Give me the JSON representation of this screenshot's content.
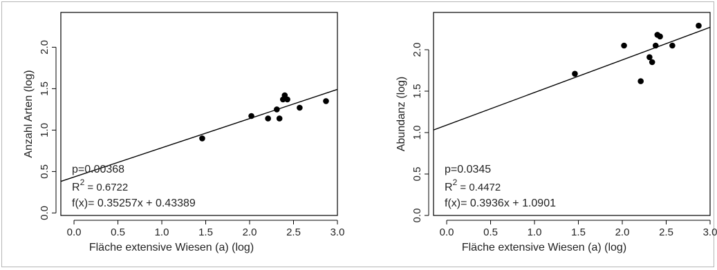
{
  "chart_data": [
    {
      "type": "scatter",
      "xlabel": "Fläche extensive Wiesen (a) (log)",
      "ylabel": "Anzahl Arten (log)",
      "xlim": [
        -0.15,
        3.0
      ],
      "ylim": [
        -0.03,
        2.42
      ],
      "xticks": [
        "0.0",
        "0.5",
        "1.0",
        "1.5",
        "2.0",
        "2.5",
        "3.0"
      ],
      "yticks": [
        "0.0",
        "0.5",
        "1.0",
        "1.5",
        "2.0"
      ],
      "grid": false,
      "points": [
        {
          "x": 1.46,
          "y": 0.9
        },
        {
          "x": 2.02,
          "y": 1.17
        },
        {
          "x": 2.21,
          "y": 1.14
        },
        {
          "x": 2.31,
          "y": 1.25
        },
        {
          "x": 2.34,
          "y": 1.14
        },
        {
          "x": 2.38,
          "y": 1.37
        },
        {
          "x": 2.4,
          "y": 1.42
        },
        {
          "x": 2.43,
          "y": 1.37
        },
        {
          "x": 2.57,
          "y": 1.27
        },
        {
          "x": 2.87,
          "y": 1.35
        }
      ],
      "fit": {
        "slope": 0.35257,
        "intercept": 0.43389
      },
      "annotations": [
        "p=0.00368",
        "R",
        "2",
        " = 0.6722",
        "f(x)= 0.35257x + 0.43389"
      ]
    },
    {
      "type": "scatter",
      "xlabel": "Fläche extensive Wiesen (a) (log)",
      "ylabel": "Abundanz (log)",
      "xlim": [
        -0.15,
        3.0
      ],
      "ylim": [
        0.0,
        2.45
      ],
      "xticks": [
        "0.0",
        "0.5",
        "1.0",
        "1.5",
        "2.0",
        "2.5",
        "3.0"
      ],
      "yticks": [
        "0.0",
        "0.5",
        "1.0",
        "1.5",
        "2.0"
      ],
      "grid": false,
      "points": [
        {
          "x": 1.46,
          "y": 1.71
        },
        {
          "x": 2.02,
          "y": 2.05
        },
        {
          "x": 2.21,
          "y": 1.62
        },
        {
          "x": 2.31,
          "y": 1.91
        },
        {
          "x": 2.34,
          "y": 1.85
        },
        {
          "x": 2.38,
          "y": 2.05
        },
        {
          "x": 2.4,
          "y": 2.18
        },
        {
          "x": 2.43,
          "y": 2.16
        },
        {
          "x": 2.57,
          "y": 2.05
        },
        {
          "x": 2.87,
          "y": 2.29
        }
      ],
      "fit": {
        "slope": 0.3936,
        "intercept": 1.0901
      },
      "annotations": [
        "p=0.0345",
        "R",
        "2",
        " = 0.4472",
        "f(x)= 0.3936x + 1.0901"
      ]
    }
  ]
}
